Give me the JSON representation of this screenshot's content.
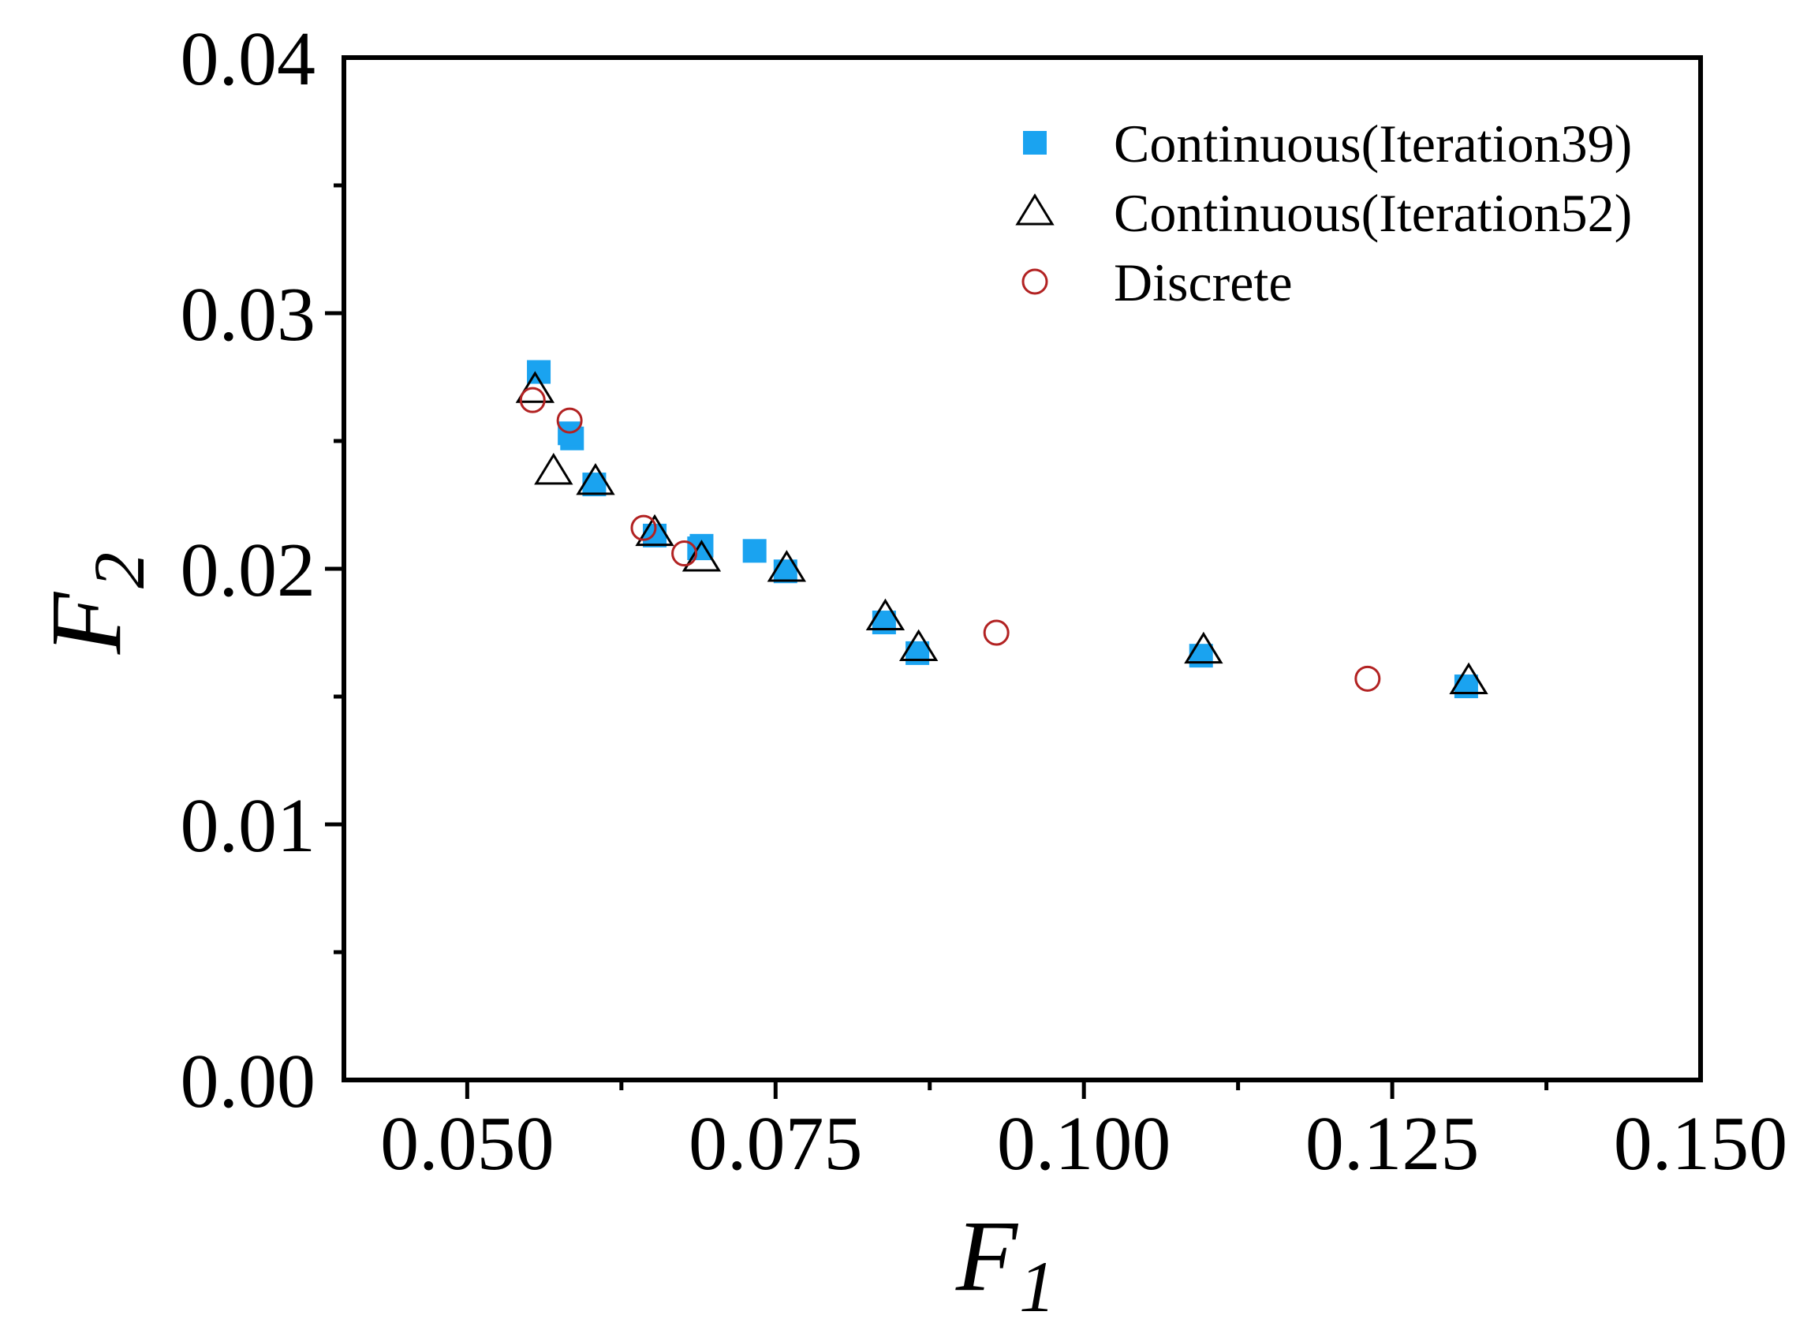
{
  "chart_data": {
    "type": "scatter",
    "title": "",
    "xlabel": "F",
    "xlabel_sub": "1",
    "ylabel": "F",
    "ylabel_sub": "2",
    "xlim": [
      0.04,
      0.15
    ],
    "ylim": [
      0.0,
      0.04
    ],
    "x_ticks": [
      {
        "value": 0.05,
        "label": "0.050"
      },
      {
        "value": 0.075,
        "label": "0.075"
      },
      {
        "value": 0.1,
        "label": "0.100"
      },
      {
        "value": 0.125,
        "label": "0.125"
      },
      {
        "value": 0.15,
        "label": "0.150"
      }
    ],
    "x_minor_ticks": [
      0.0625,
      0.0875,
      0.1125,
      0.1375
    ],
    "y_ticks": [
      {
        "value": 0.0,
        "label": "0.00"
      },
      {
        "value": 0.01,
        "label": "0.01"
      },
      {
        "value": 0.02,
        "label": "0.02"
      },
      {
        "value": 0.03,
        "label": "0.03"
      },
      {
        "value": 0.04,
        "label": "0.04"
      }
    ],
    "y_minor_ticks": [
      0.005,
      0.015,
      0.025,
      0.035
    ],
    "grid": false,
    "legend_position": "top-right",
    "series": [
      {
        "name": "Continuous(Iteration39)",
        "marker": "filled-square",
        "color": "#1aa3f0",
        "points": [
          [
            0.0558,
            0.0277
          ],
          [
            0.0585,
            0.0251
          ],
          [
            0.0583,
            0.0253
          ],
          [
            0.0603,
            0.0233
          ],
          [
            0.0652,
            0.0213
          ],
          [
            0.0688,
            0.0208
          ],
          [
            0.069,
            0.0209
          ],
          [
            0.0733,
            0.0207
          ],
          [
            0.0758,
            0.0199
          ],
          [
            0.0838,
            0.0179
          ],
          [
            0.0865,
            0.0167
          ],
          [
            0.1095,
            0.0166
          ],
          [
            0.131,
            0.0154
          ]
        ]
      },
      {
        "name": "Continuous(Iteration52)",
        "marker": "open-triangle",
        "color": "#000000",
        "points": [
          [
            0.0555,
            0.027
          ],
          [
            0.057,
            0.0238
          ],
          [
            0.0604,
            0.0234
          ],
          [
            0.0652,
            0.0214
          ],
          [
            0.069,
            0.0204
          ],
          [
            0.0759,
            0.02
          ],
          [
            0.0839,
            0.0181
          ],
          [
            0.0866,
            0.0169
          ],
          [
            0.1097,
            0.0168
          ],
          [
            0.1312,
            0.0156
          ]
        ]
      },
      {
        "name": "Discrete",
        "marker": "open-circle",
        "color": "#b22222",
        "points": [
          [
            0.0553,
            0.0266
          ],
          [
            0.0583,
            0.0258
          ],
          [
            0.0643,
            0.0216
          ],
          [
            0.0676,
            0.0206
          ],
          [
            0.0929,
            0.0175
          ],
          [
            0.123,
            0.0157
          ]
        ]
      }
    ]
  }
}
